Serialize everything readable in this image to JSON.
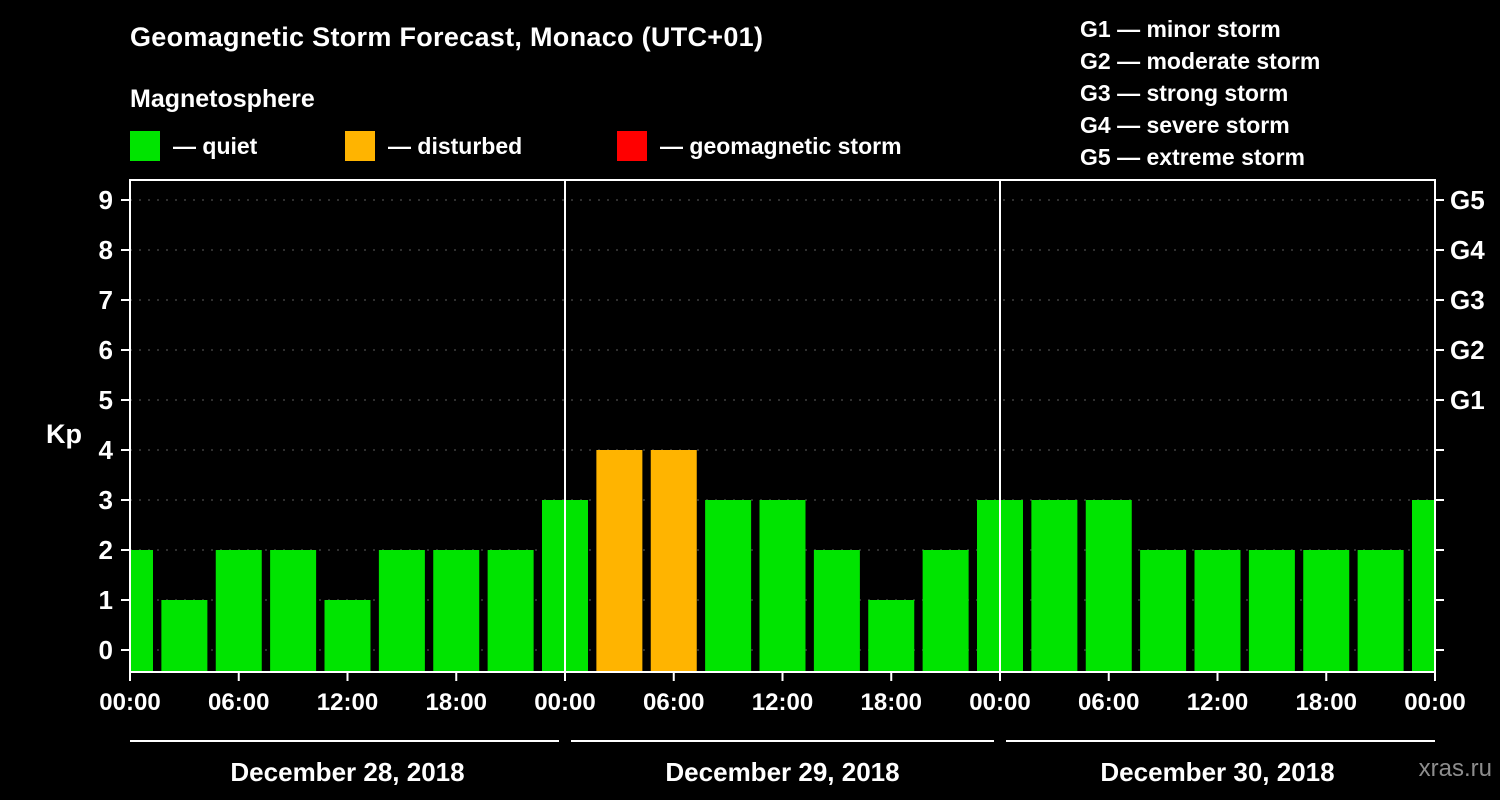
{
  "header": {
    "title": "Geomagnetic Storm Forecast, Monaco (UTC+01)",
    "subtitle": "Magnetosphere"
  },
  "legend": {
    "items": [
      {
        "name": "quiet",
        "label": "— quiet",
        "color": "#00e400"
      },
      {
        "name": "disturbed",
        "label": "— disturbed",
        "color": "#ffb400"
      },
      {
        "name": "storm",
        "label": "— geomagnetic storm",
        "color": "#ff0000"
      }
    ]
  },
  "g_legend": {
    "items": [
      "G1 — minor storm",
      "G2 — moderate storm",
      "G3 — strong storm",
      "G4 — severe storm",
      "G5 — extreme storm"
    ]
  },
  "chart_data": {
    "type": "bar",
    "title": "Geomagnetic Storm Forecast, Monaco (UTC+01)",
    "ylabel": "Kp",
    "ylim": [
      0,
      9
    ],
    "y_ticks": [
      0,
      1,
      2,
      3,
      4,
      5,
      6,
      7,
      8,
      9
    ],
    "right_axis": {
      "labels": [
        "G1",
        "G2",
        "G3",
        "G4",
        "G5"
      ],
      "values": [
        5,
        6,
        7,
        8,
        9
      ]
    },
    "x_hours_span": 72,
    "bar_interval_hours": 3,
    "values": [
      2,
      1,
      2,
      2,
      1,
      2,
      2,
      2,
      3,
      4,
      4,
      3,
      3,
      2,
      1,
      2,
      3,
      3,
      3,
      2,
      2,
      2,
      2,
      2,
      3
    ],
    "x_tick_labels": [
      "00:00",
      "06:00",
      "12:00",
      "18:00",
      "00:00",
      "06:00",
      "12:00",
      "18:00",
      "00:00",
      "06:00",
      "12:00",
      "18:00",
      "00:00"
    ],
    "day_labels": [
      "December 28, 2018",
      "December 29, 2018",
      "December 30, 2018"
    ],
    "color_rules": {
      "quiet_max": 3,
      "disturbed_max": 4
    },
    "grid": "dotted-horizontal",
    "legend_position": "top"
  },
  "footer": {
    "watermark": "xras.ru"
  },
  "colors": {
    "background": "#000000",
    "axis": "#ffffff",
    "grid": "#5e5e5e",
    "quiet": "#00e400",
    "disturbed": "#ffb400",
    "storm": "#ff0000",
    "watermark": "#8d8d8d"
  }
}
